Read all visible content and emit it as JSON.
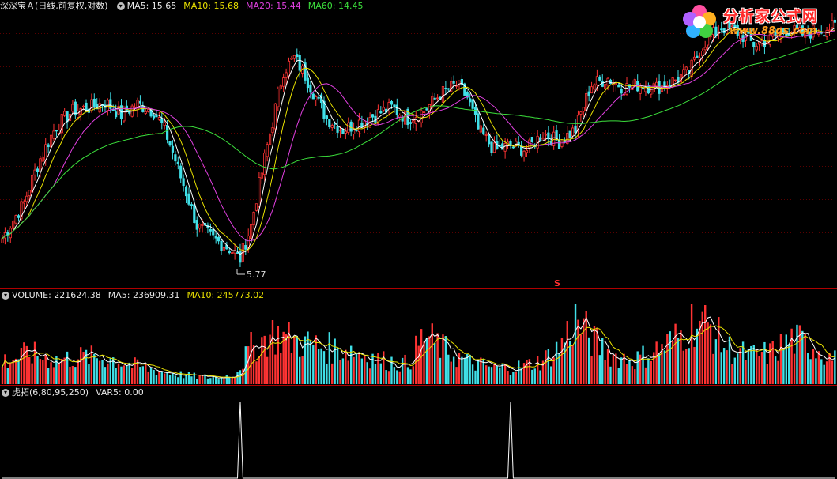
{
  "price_panel": {
    "title": "深深宝Ａ(日线,前复权,对数)",
    "ma5_label": "MA5: 15.65",
    "ma10_label": "MA10: 15.68",
    "ma20_label": "MA20: 15.44",
    "ma60_label": "MA60: 14.45",
    "low_label": "5.77",
    "signal_mark": "S"
  },
  "volume_panel": {
    "volume_label": "VOLUME: 221624.38",
    "ma5_label": "MA5: 236909.31",
    "ma10_label": "MA10: 245773.02"
  },
  "indicator_panel": {
    "name_label": "虎拓(6,80,95,250)",
    "var5_label": "VAR5: 0.00"
  },
  "logo": {
    "title": "分析家公式网",
    "url": "www.88gs.com"
  },
  "colors": {
    "up": "#ff3333",
    "down": "#40e0e8",
    "ma5": "#ffffff",
    "ma10": "#e8e000",
    "ma20": "#e040e0",
    "ma60": "#3ce03c",
    "separator": "#b00000",
    "indicator": "#ffffff"
  },
  "chart_data": [
    {
      "type": "candlestick",
      "title": "深深宝Ａ(日线,前复权,对数)",
      "y_scale": "log",
      "low_annotation": 5.77,
      "close_anchors": [
        [
          0,
          6.6
        ],
        [
          8,
          7.8
        ],
        [
          14,
          9.6
        ],
        [
          20,
          11.2
        ],
        [
          26,
          12.0
        ],
        [
          32,
          12.2
        ],
        [
          38,
          12.5
        ],
        [
          44,
          11.8
        ],
        [
          50,
          12.4
        ],
        [
          56,
          12.0
        ],
        [
          60,
          11.0
        ],
        [
          66,
          8.8
        ],
        [
          72,
          7.0
        ],
        [
          78,
          6.6
        ],
        [
          84,
          6.3
        ],
        [
          88,
          6.0
        ],
        [
          92,
          7.0
        ],
        [
          96,
          9.0
        ],
        [
          100,
          11.4
        ],
        [
          104,
          14.5
        ],
        [
          108,
          15.4
        ],
        [
          112,
          14.2
        ],
        [
          116,
          12.8
        ],
        [
          120,
          11.6
        ],
        [
          126,
          11.0
        ],
        [
          132,
          11.4
        ],
        [
          138,
          11.8
        ],
        [
          144,
          12.2
        ],
        [
          150,
          11.6
        ],
        [
          156,
          12.0
        ],
        [
          162,
          13.0
        ],
        [
          168,
          13.6
        ],
        [
          172,
          12.8
        ],
        [
          176,
          11.0
        ],
        [
          182,
          10.0
        ],
        [
          188,
          10.2
        ],
        [
          194,
          10.0
        ],
        [
          200,
          10.8
        ],
        [
          206,
          10.4
        ],
        [
          212,
          11.0
        ],
        [
          218,
          13.6
        ],
        [
          224,
          14.0
        ],
        [
          230,
          13.4
        ],
        [
          236,
          13.6
        ],
        [
          242,
          13.4
        ],
        [
          248,
          13.8
        ],
        [
          254,
          14.4
        ],
        [
          260,
          16.6
        ],
        [
          266,
          17.8
        ],
        [
          272,
          17.4
        ],
        [
          278,
          16.4
        ],
        [
          284,
          16.8
        ],
        [
          290,
          17.6
        ],
        [
          296,
          17.2
        ],
        [
          302,
          17.6
        ],
        [
          308,
          17.8
        ]
      ]
    },
    {
      "type": "bar",
      "title": "VOLUME",
      "value_anchors": [
        [
          0,
          0.28
        ],
        [
          10,
          0.38
        ],
        [
          20,
          0.3
        ],
        [
          30,
          0.34
        ],
        [
          40,
          0.32
        ],
        [
          50,
          0.22
        ],
        [
          60,
          0.15
        ],
        [
          70,
          0.1
        ],
        [
          80,
          0.08
        ],
        [
          86,
          0.12
        ],
        [
          92,
          0.45
        ],
        [
          100,
          0.62
        ],
        [
          110,
          0.52
        ],
        [
          120,
          0.45
        ],
        [
          130,
          0.42
        ],
        [
          140,
          0.3
        ],
        [
          150,
          0.25
        ],
        [
          156,
          0.6
        ],
        [
          164,
          0.42
        ],
        [
          172,
          0.28
        ],
        [
          182,
          0.2
        ],
        [
          192,
          0.22
        ],
        [
          200,
          0.3
        ],
        [
          206,
          0.45
        ],
        [
          212,
          0.8
        ],
        [
          218,
          0.55
        ],
        [
          226,
          0.35
        ],
        [
          234,
          0.3
        ],
        [
          242,
          0.42
        ],
        [
          250,
          0.58
        ],
        [
          256,
          0.8
        ],
        [
          262,
          0.7
        ],
        [
          268,
          0.45
        ],
        [
          276,
          0.35
        ],
        [
          284,
          0.38
        ],
        [
          292,
          0.55
        ],
        [
          300,
          0.48
        ],
        [
          308,
          0.3
        ]
      ]
    },
    {
      "type": "line",
      "title": "虎拓(6,80,95,250)",
      "spike_bars": [
        88,
        188
      ]
    }
  ]
}
